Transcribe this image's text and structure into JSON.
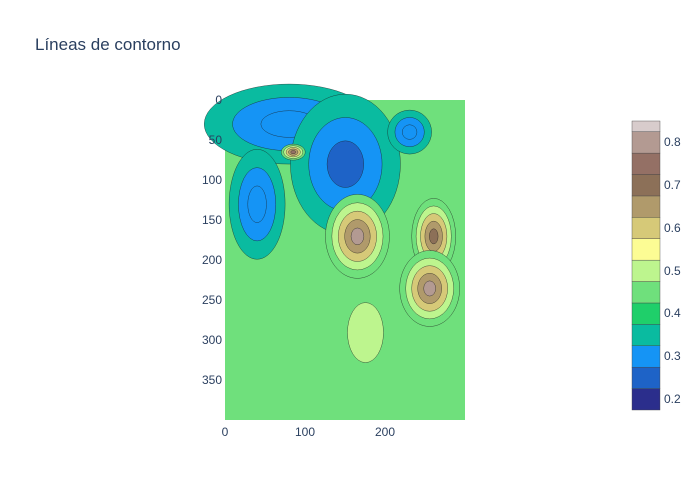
{
  "chart_data": {
    "type": "heatmap",
    "subtype": "contour",
    "title": "Líneas de contorno",
    "x_ticks": [
      "0",
      "100",
      "200"
    ],
    "y_ticks": [
      "0",
      "50",
      "100",
      "150",
      "200",
      "250",
      "300",
      "350"
    ],
    "xlim": [
      0,
      299
    ],
    "ylim": [
      0,
      399
    ],
    "y_reversed": true,
    "colorbar": {
      "ticks": [
        "0.2",
        "0.3",
        "0.4",
        "0.5",
        "0.6",
        "0.7",
        "0.8"
      ],
      "tick_values": [
        0.2,
        0.3,
        0.4,
        0.5,
        0.6,
        0.7,
        0.8
      ],
      "range": [
        0.175,
        0.85
      ],
      "level_step": 0.05,
      "colorscale": [
        "#2b2e8c",
        "#1e63c7",
        "#1594f5",
        "#0abba0",
        "#1fcf6a",
        "#6fe07c",
        "#bdf58e",
        "#fcfc94",
        "#d6c978",
        "#b09a6b",
        "#8c7058",
        "#947065",
        "#b39a92",
        "#d8cccc"
      ]
    },
    "features": {
      "blue_low_regions": [
        {
          "x": 80,
          "y": 30,
          "value": 0.28
        },
        {
          "x": 150,
          "y": 80,
          "value": 0.27
        },
        {
          "x": 40,
          "y": 130,
          "value": 0.29
        },
        {
          "x": 230,
          "y": 40,
          "value": 0.3
        }
      ],
      "brown_high_regions": [
        {
          "x": 165,
          "y": 170,
          "value": 0.78
        },
        {
          "x": 260,
          "y": 170,
          "value": 0.7
        },
        {
          "x": 255,
          "y": 235,
          "value": 0.8
        },
        {
          "x": 85,
          "y": 65,
          "value": 0.75
        }
      ]
    }
  }
}
